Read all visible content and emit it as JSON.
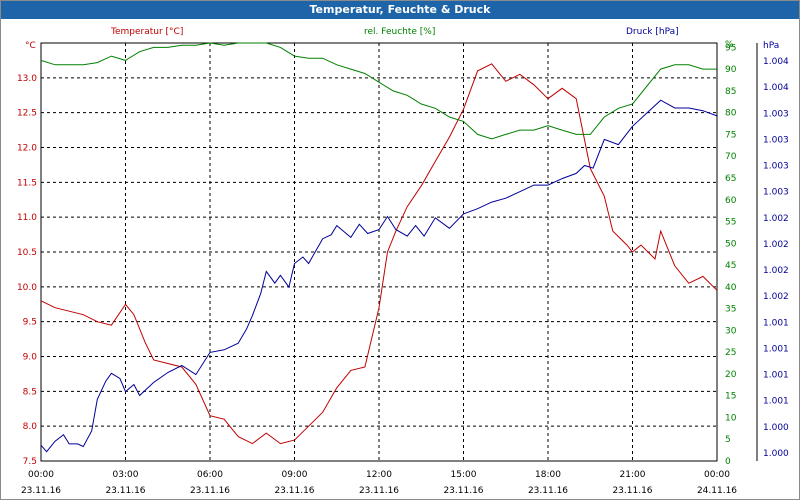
{
  "window": {
    "title": "Temperatur, Feuchte & Druck"
  },
  "colors": {
    "temperature": "#c00000",
    "humidity": "#008000",
    "pressure": "#000099",
    "title_bar": "#1e64a8",
    "grid": "#000000"
  },
  "chart_data": {
    "type": "line",
    "title": "Temperatur, Feuchte & Druck",
    "grid": true,
    "x_ticks": [
      {
        "time": "00:00",
        "date": "23.11.16"
      },
      {
        "time": "03:00",
        "date": "23.11.16"
      },
      {
        "time": "06:00",
        "date": "23.11.16"
      },
      {
        "time": "09:00",
        "date": "23.11.16"
      },
      {
        "time": "12:00",
        "date": "23.11.16"
      },
      {
        "time": "15:00",
        "date": "23.11.16"
      },
      {
        "time": "18:00",
        "date": "23.11.16"
      },
      {
        "time": "21:00",
        "date": "23.11.16"
      },
      {
        "time": "00:00",
        "date": "24.11.16"
      }
    ],
    "axes": {
      "temperature": {
        "label": "Temperatur [°C]",
        "unit": "°C",
        "ylim": [
          7.5,
          13.5
        ],
        "position": "left",
        "ticks": [
          "7.5",
          "8.0",
          "8.5",
          "9.0",
          "9.5",
          "10.0",
          "10.5",
          "11.0",
          "11.5",
          "12.0",
          "12.5",
          "13.0"
        ]
      },
      "humidity": {
        "label": "rel. Feuchte [%]",
        "unit": "%",
        "ylim": [
          0,
          96
        ],
        "position": "right-inner",
        "ticks": [
          "0",
          "5",
          "10",
          "15",
          "20",
          "25",
          "30",
          "35",
          "40",
          "45",
          "50",
          "55",
          "60",
          "65",
          "70",
          "75",
          "80",
          "85",
          "90",
          "95"
        ]
      },
      "pressure": {
        "label": "Druck [hPa]",
        "unit": "hPa",
        "position": "right-outer",
        "ticks": [
          "1.000",
          "1.000",
          "1.001",
          "1.001",
          "1.001",
          "1.001",
          "1.002",
          "1.002",
          "1.002",
          "1.002",
          "1.003",
          "1.003",
          "1.003",
          "1.003",
          "1.004",
          "1.004"
        ]
      }
    },
    "x_range_hours": [
      0,
      24
    ],
    "series": [
      {
        "name": "Temperatur [°C]",
        "axis": "temperature",
        "x": [
          0,
          0.5,
          1,
          1.5,
          2,
          2.5,
          3,
          3.3,
          3.7,
          4,
          4.5,
          5,
          5.5,
          6,
          6.5,
          7,
          7.5,
          8,
          8.5,
          9,
          9.5,
          10,
          10.5,
          11,
          11.5,
          12,
          12.3,
          12.6,
          13,
          13.5,
          14,
          14.5,
          15,
          15.5,
          16,
          16.5,
          17,
          17.5,
          18,
          18.5,
          19,
          19.5,
          20,
          20.3,
          20.8,
          21,
          21.3,
          21.8,
          22,
          22.5,
          23,
          23.5,
          24
        ],
        "y": [
          9.8,
          9.7,
          9.65,
          9.6,
          9.5,
          9.45,
          9.75,
          9.6,
          9.2,
          8.95,
          8.9,
          8.85,
          8.6,
          8.15,
          8.1,
          7.85,
          7.75,
          7.9,
          7.75,
          7.8,
          8.0,
          8.2,
          8.55,
          8.8,
          8.85,
          9.7,
          10.5,
          10.8,
          11.15,
          11.45,
          11.8,
          12.15,
          12.55,
          13.1,
          13.2,
          12.95,
          13.05,
          12.9,
          12.7,
          12.85,
          12.7,
          11.7,
          11.3,
          10.8,
          10.6,
          10.5,
          10.6,
          10.4,
          10.8,
          10.3,
          10.05,
          10.15,
          9.95
        ]
      },
      {
        "name": "rel. Feuchte [%]",
        "axis": "humidity",
        "x": [
          0,
          0.5,
          1,
          1.5,
          2,
          2.5,
          3,
          3.5,
          4,
          4.5,
          5,
          5.5,
          6,
          6.5,
          7,
          7.5,
          8,
          8.5,
          9,
          9.5,
          10,
          10.5,
          11,
          11.5,
          12,
          12.5,
          13,
          13.5,
          14,
          14.5,
          15,
          15.5,
          16,
          16.5,
          17,
          17.5,
          18,
          18.5,
          19,
          19.5,
          20,
          20.5,
          21,
          21.5,
          22,
          22.5,
          23,
          23.5,
          24
        ],
        "y": [
          92,
          91,
          91,
          91,
          91.5,
          93,
          92,
          94,
          95,
          95,
          95.5,
          95.5,
          96,
          95.5,
          96,
          96,
          96,
          95,
          93,
          92.5,
          92.5,
          91,
          90,
          89,
          87,
          85,
          84,
          82,
          81,
          79,
          78,
          75,
          74,
          75,
          76,
          76,
          77,
          76,
          75,
          75,
          79,
          81,
          82,
          86,
          90,
          91,
          91,
          90,
          90
        ]
      },
      {
        "name": "Druck [hPa]",
        "axis": "pressure",
        "x": [
          0,
          0.2,
          0.5,
          0.8,
          1,
          1.3,
          1.5,
          1.8,
          2,
          2.3,
          2.5,
          2.8,
          3,
          3.3,
          3.5,
          4,
          4.5,
          5,
          5.5,
          6,
          6.5,
          7,
          7.3,
          7.5,
          7.8,
          8,
          8.3,
          8.5,
          8.8,
          9,
          9.3,
          9.5,
          10,
          10.3,
          10.5,
          11,
          11.3,
          11.6,
          12,
          12.3,
          12.6,
          13,
          13.3,
          13.6,
          14,
          14.5,
          15,
          15.5,
          16,
          16.5,
          17,
          17.5,
          18,
          18.5,
          19,
          19.3,
          19.6,
          20,
          20.5,
          21,
          21.5,
          22,
          22.5,
          23,
          23.5,
          24
        ],
        "y": [
          0.03,
          0.005,
          0.045,
          0.07,
          0.035,
          0.035,
          0.025,
          0.085,
          0.205,
          0.275,
          0.305,
          0.285,
          0.235,
          0.262,
          0.22,
          0.27,
          0.308,
          0.335,
          0.3,
          0.385,
          0.395,
          0.42,
          0.475,
          0.525,
          0.61,
          0.695,
          0.65,
          0.68,
          0.635,
          0.725,
          0.75,
          0.725,
          0.82,
          0.835,
          0.87,
          0.825,
          0.875,
          0.84,
          0.855,
          0.905,
          0.855,
          0.83,
          0.87,
          0.83,
          0.9,
          0.86,
          0.915,
          0.935,
          0.96,
          0.975,
          1.0,
          1.025,
          1.025,
          1.05,
          1.07,
          1.1,
          1.09,
          1.2,
          1.18,
          1.25,
          1.3,
          1.35,
          1.32,
          1.32,
          1.31,
          1.29
        ]
      }
    ]
  }
}
